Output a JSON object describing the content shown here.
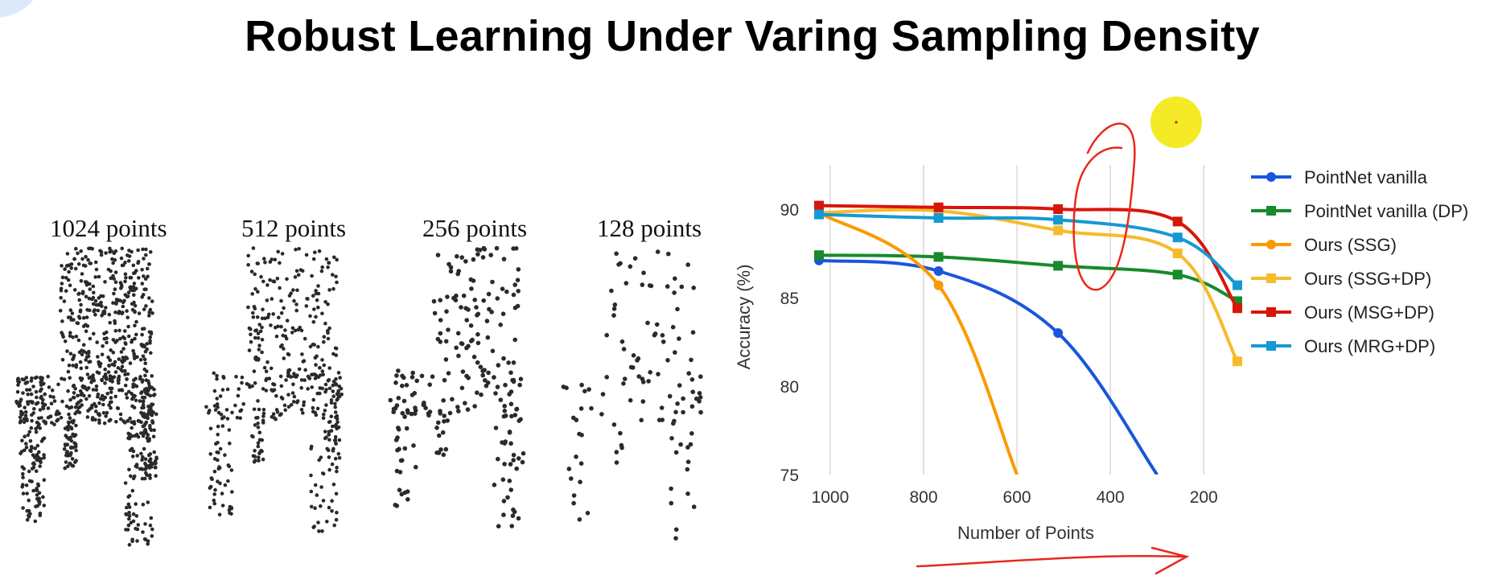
{
  "slide": {
    "title": "Robust Learning Under Varing Sampling Density"
  },
  "chairs": [
    {
      "label": "1024 points",
      "count": 1024
    },
    {
      "label": "512 points",
      "count": 512
    },
    {
      "label": "256 points",
      "count": 256
    },
    {
      "label": "128 points",
      "count": 128
    }
  ],
  "chart_data": {
    "type": "line",
    "title": "",
    "xlabel": "Number of Points",
    "ylabel": "Accuracy (%)",
    "xlim": [
      1024,
      128
    ],
    "ylim": [
      75,
      92.5
    ],
    "x_reversed": true,
    "xticks": [
      1000,
      800,
      600,
      400,
      200
    ],
    "yticks": [
      75,
      80,
      85,
      90
    ],
    "grid": "vertical",
    "legend_position": "right",
    "series": [
      {
        "name": "PointNet vanilla",
        "color": "#1a56db",
        "marker": "circle",
        "points": [
          [
            1024,
            87.1
          ],
          [
            768,
            86.5
          ],
          [
            512,
            83.0
          ],
          [
            300,
            75.0
          ]
        ]
      },
      {
        "name": "PointNet vanilla (DP)",
        "color": "#178a2b",
        "marker": "square",
        "points": [
          [
            1024,
            87.4
          ],
          [
            768,
            87.3
          ],
          [
            512,
            86.8
          ],
          [
            256,
            86.3
          ],
          [
            128,
            84.8
          ]
        ]
      },
      {
        "name": "Ours (SSG)",
        "color": "#fb9a00",
        "marker": "circle",
        "points": [
          [
            1024,
            89.8
          ],
          [
            768,
            85.7
          ],
          [
            600,
            75.0
          ]
        ]
      },
      {
        "name": "Ours (SSG+DP)",
        "color": "#f6bb2a",
        "marker": "square",
        "points": [
          [
            1024,
            89.8
          ],
          [
            768,
            89.9
          ],
          [
            512,
            88.8
          ],
          [
            256,
            87.5
          ],
          [
            128,
            81.4
          ]
        ]
      },
      {
        "name": "Ours (MSG+DP)",
        "color": "#d9150b",
        "marker": "square",
        "points": [
          [
            1024,
            90.2
          ],
          [
            768,
            90.1
          ],
          [
            512,
            90.0
          ],
          [
            256,
            89.3
          ],
          [
            128,
            84.4
          ]
        ]
      },
      {
        "name": "Ours (MRG+DP)",
        "color": "#1599d3",
        "marker": "square",
        "points": [
          [
            1024,
            89.7
          ],
          [
            768,
            89.5
          ],
          [
            512,
            89.4
          ],
          [
            256,
            88.4
          ],
          [
            128,
            85.7
          ]
        ]
      }
    ]
  }
}
